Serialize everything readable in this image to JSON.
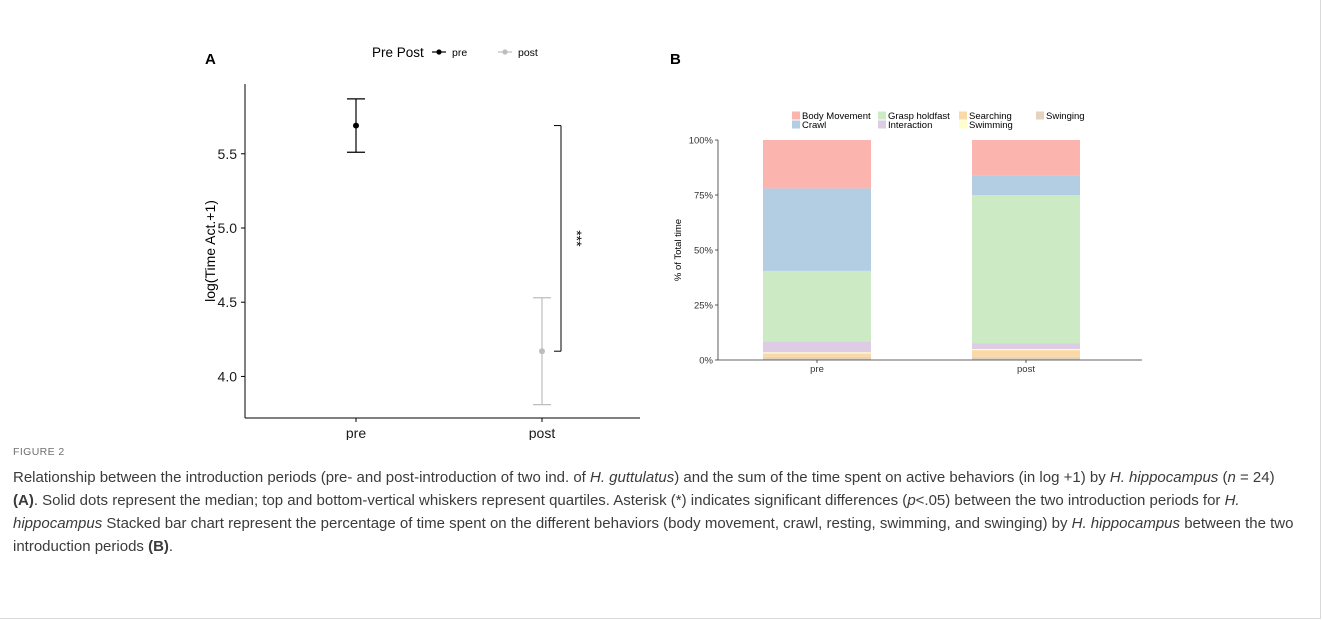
{
  "panel_labels": {
    "a": "A",
    "b": "B"
  },
  "chart_data": [
    {
      "panel": "A",
      "type": "scatter",
      "legend_title": "Pre Post",
      "legend_position": "top",
      "categories": [
        "pre",
        "post"
      ],
      "series": [
        {
          "name": "pre",
          "color": "#000000",
          "x": "pre",
          "median": 5.69,
          "q_low": 5.51,
          "q_high": 5.87
        },
        {
          "name": "post",
          "color": "#bdbdbd",
          "x": "post",
          "median": 4.17,
          "q_low": 3.81,
          "q_high": 4.53
        }
      ],
      "ylabel": "log(Time Act.+1)",
      "xlabel": "",
      "ylim": [
        3.72,
        5.97
      ],
      "yticks": [
        "4.0",
        "4.5",
        "5.0",
        "5.5"
      ],
      "ytick_values": [
        4.0,
        4.5,
        5.0,
        5.5
      ],
      "significance": {
        "label": "***",
        "from_y": 4.17,
        "to_y": 5.69
      },
      "grid": false
    },
    {
      "panel": "B",
      "type": "bar",
      "stacked": true,
      "categories": [
        "pre",
        "post"
      ],
      "ylabel": "% of Total time",
      "xlabel": "",
      "ylim": [
        0,
        100
      ],
      "yticks": [
        "0%",
        "25%",
        "50%",
        "75%",
        "100%"
      ],
      "ytick_values": [
        0,
        25,
        50,
        75,
        100
      ],
      "legend_position": "top",
      "series": [
        {
          "name": "Swinging",
          "color": "#e6d3bd",
          "values": [
            1.5,
            1.5
          ]
        },
        {
          "name": "Searching",
          "color": "#fbd9a6",
          "values": [
            1.5,
            3.0
          ]
        },
        {
          "name": "Swimming",
          "color": "#ffffcc",
          "values": [
            0.5,
            0.5
          ]
        },
        {
          "name": "Interaction",
          "color": "#decbe4",
          "values": [
            5.0,
            2.5
          ]
        },
        {
          "name": "Grasp holdfast",
          "color": "#ccebc5",
          "values": [
            32.0,
            67.5
          ]
        },
        {
          "name": "Crawl",
          "color": "#b3cde3",
          "values": [
            37.5,
            9.0
          ]
        },
        {
          "name": "Body Movement",
          "color": "#fbb4ae",
          "values": [
            22.0,
            16.0
          ]
        }
      ],
      "legend_order": [
        "Body Movement",
        "Crawl",
        "Grasp holdfast",
        "Interaction",
        "Searching",
        "Swimming",
        "Swinging"
      ],
      "grid": false
    }
  ],
  "caption": {
    "figure_label": "FIGURE 2",
    "parts": [
      {
        "t": "Relationship between the introduction periods (pre- and post-introduction of two ind. of "
      },
      {
        "t": "H. guttulatus",
        "s": "i"
      },
      {
        "t": ") and the sum of the time spent on active behaviors (in log +1) by "
      },
      {
        "t": "H. hippocampus",
        "s": "i"
      },
      {
        "t": " ("
      },
      {
        "t": "n",
        "s": "i"
      },
      {
        "t": " = 24) "
      },
      {
        "t": "(A)",
        "s": "b"
      },
      {
        "t": ". Solid dots represent the median; top and bottom-vertical whiskers represent quartiles. Asterisk (*) indicates significant differences ("
      },
      {
        "t": "p",
        "s": "i"
      },
      {
        "t": "<.05) between the two introduction periods for "
      },
      {
        "t": "H. hippocampus",
        "s": "i"
      },
      {
        "t": " Stacked bar chart represent the percentage of time spent on the different behaviors (body movement, crawl, resting, swimming, and swinging) by "
      },
      {
        "t": "H. hippocampus",
        "s": "i"
      },
      {
        "t": " between the two introduction periods "
      },
      {
        "t": "(B)",
        "s": "b"
      },
      {
        "t": "."
      }
    ]
  }
}
